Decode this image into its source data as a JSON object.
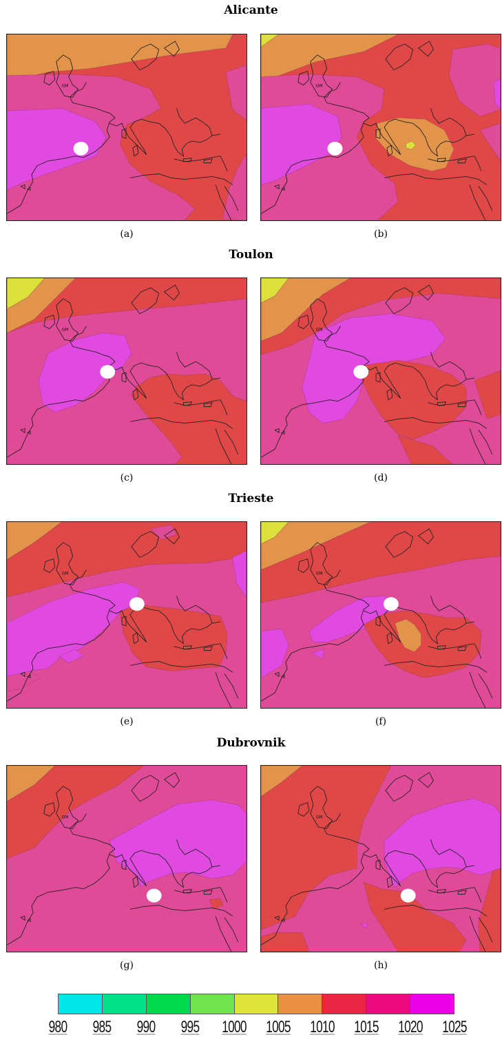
{
  "sections": [
    {
      "title": "Alicante",
      "captions": [
        "(a)",
        "(b)"
      ]
    },
    {
      "title": "Toulon",
      "captions": [
        "(c)",
        "(d)"
      ]
    },
    {
      "title": "Trieste",
      "captions": [
        "(e)",
        "(f)"
      ]
    },
    {
      "title": "Dubrovnik",
      "captions": [
        "(g)",
        "(h)"
      ]
    }
  ],
  "map_label": "GM",
  "colorbar": {
    "ticks": [
      "980",
      "985",
      "990",
      "995",
      "1000",
      "1005",
      "1010",
      "1015",
      "1020",
      "1025"
    ],
    "colors": [
      "#00e5e5",
      "#00e08a",
      "#00d84c",
      "#6fe44c",
      "#dfe43a",
      "#ea8f44",
      "#e82543",
      "#ec0a7f",
      "#ec00e6"
    ]
  }
}
